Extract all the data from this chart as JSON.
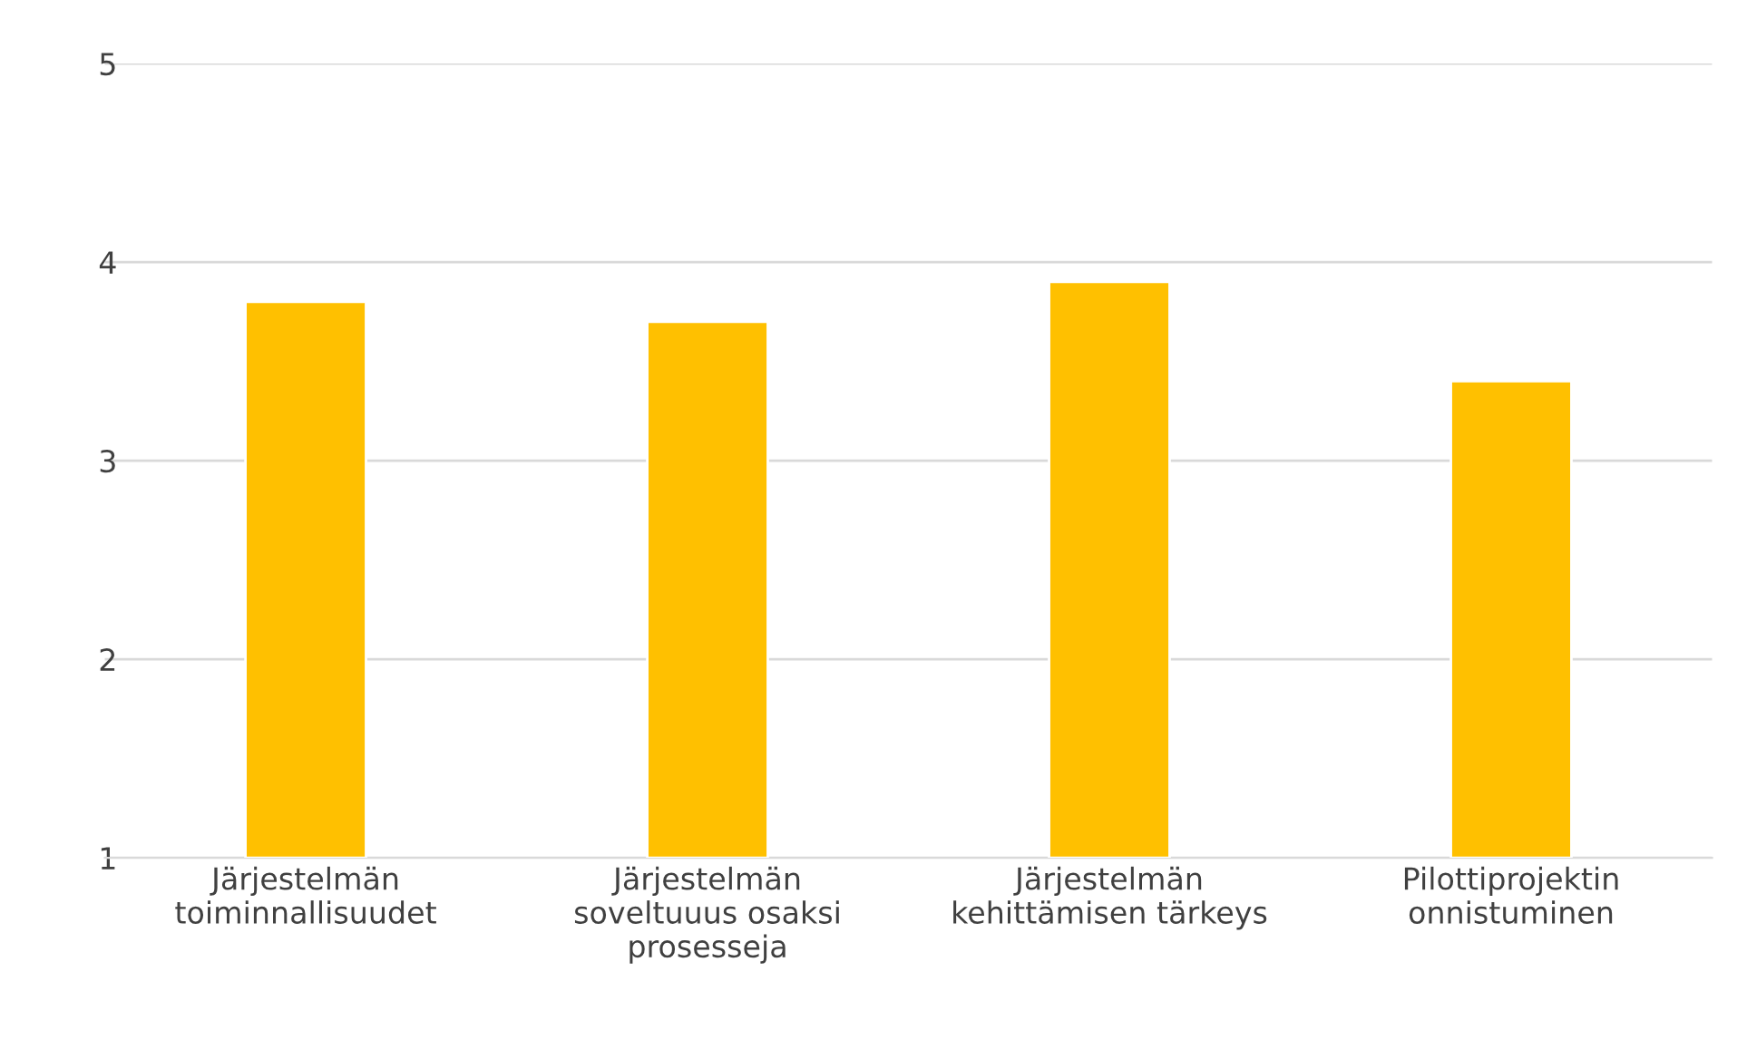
{
  "chart_data": {
    "type": "bar",
    "categories": [
      "Järjestelmän\ntoiminnallisuudet",
      "Järjestelmän\nsoveltuuus osaksi\nprosesseja",
      "Järjestelmän\nkehittämisen tärkeys",
      "Pilottiprojektin\nonnistuminen"
    ],
    "values": [
      3.8,
      3.7,
      3.9,
      3.4
    ],
    "color": "#ffc000",
    "ylim": [
      1,
      5
    ],
    "yticks": [
      1,
      2,
      3,
      4,
      5
    ],
    "grid": "y"
  }
}
